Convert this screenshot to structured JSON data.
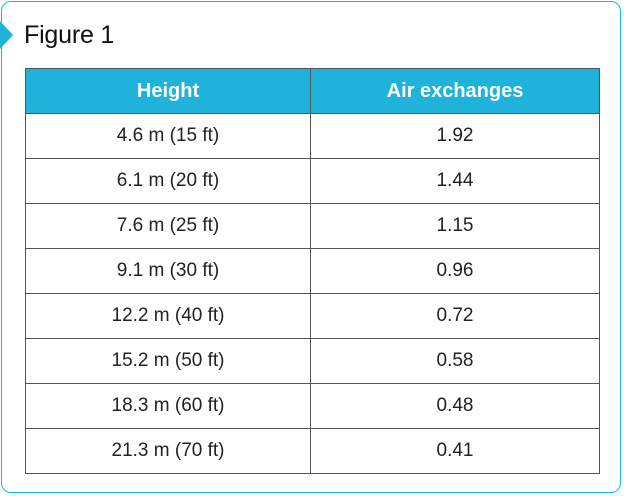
{
  "figure": {
    "title": "Figure 1"
  },
  "colors": {
    "accent": "#1fb3dc",
    "border": "#555555"
  },
  "table": {
    "headers": [
      "Height",
      "Air exchanges"
    ],
    "rows": [
      [
        "4.6 m (15 ft)",
        "1.92"
      ],
      [
        "6.1 m (20 ft)",
        "1.44"
      ],
      [
        "7.6 m (25 ft)",
        "1.15"
      ],
      [
        "9.1 m (30 ft)",
        "0.96"
      ],
      [
        "12.2 m (40 ft)",
        "0.72"
      ],
      [
        "15.2 m (50 ft)",
        "0.58"
      ],
      [
        "18.3 m (60 ft)",
        "0.48"
      ],
      [
        "21.3 m (70 ft)",
        "0.41"
      ]
    ]
  }
}
